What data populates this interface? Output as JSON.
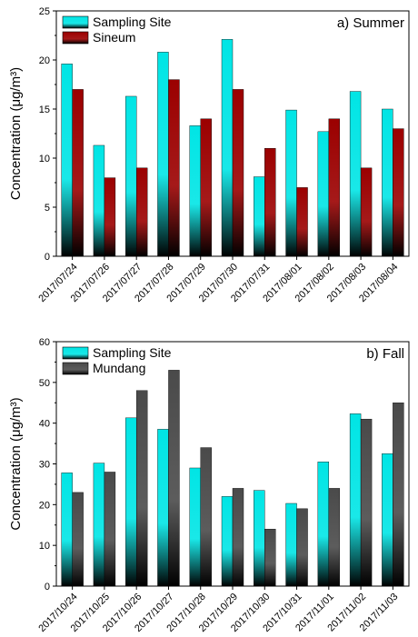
{
  "chart_data": [
    {
      "type": "bar",
      "panel_label": "a) Summer",
      "ylabel": "Concentration (μg/m³)",
      "ylim": [
        0,
        25
      ],
      "yticks": [
        0,
        5,
        10,
        15,
        20,
        25
      ],
      "categories": [
        "2017/07/24",
        "2017/07/26",
        "2017/07/27",
        "2017/07/28",
        "2017/07/29",
        "2017/07/30",
        "2017/07/31",
        "2017/08/01",
        "2017/08/02",
        "2017/08/03",
        "2017/08/04"
      ],
      "series": [
        {
          "name": "Sampling Site",
          "color": "#00e5e5",
          "values": [
            19.6,
            11.3,
            16.3,
            20.8,
            13.3,
            22.1,
            8.1,
            14.9,
            12.7,
            16.8,
            15.0
          ]
        },
        {
          "name": "Sineum",
          "color": "#9b0000",
          "values": [
            17.0,
            8.0,
            9.0,
            18.0,
            14.0,
            17.0,
            11.0,
            7.0,
            14.0,
            9.0,
            13.0
          ]
        }
      ],
      "legend": "top-left"
    },
    {
      "type": "bar",
      "panel_label": "b) Fall",
      "ylabel": "Concentration (μg/m³)",
      "ylim": [
        0,
        60
      ],
      "yticks": [
        0,
        10,
        20,
        30,
        40,
        50,
        60
      ],
      "categories": [
        "2017/10/24",
        "2017/10/25",
        "2017/10/26",
        "2017/10/27",
        "2017/10/28",
        "2017/10/29",
        "2017/10/30",
        "2017/10/31",
        "2017/11/01",
        "2017/11/02",
        "2017/11/03"
      ],
      "series": [
        {
          "name": "Sampling Site",
          "color": "#00e5e5",
          "values": [
            27.8,
            30.2,
            41.3,
            38.5,
            29.0,
            22.0,
            23.5,
            20.3,
            30.5,
            42.3,
            32.5
          ]
        },
        {
          "name": "Mundang",
          "color": "#4a4a4a",
          "values": [
            23.0,
            28.0,
            48.0,
            53.0,
            34.0,
            24.0,
            14.0,
            19.0,
            24.0,
            41.0,
            45.0
          ]
        }
      ],
      "legend": "top-left"
    }
  ]
}
